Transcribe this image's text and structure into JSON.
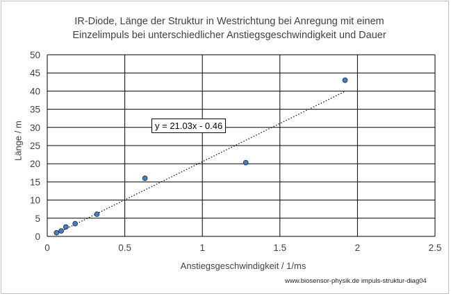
{
  "chart_data": {
    "type": "scatter",
    "title_lines": [
      "IR-Diode, Länge der Struktur in Westrichtung bei Anregung mit einem",
      "Einzelimpuls bei unterschiedlicher Anstiegsgeschwindigkeit und Dauer"
    ],
    "xlabel": "Anstiegsgeschwindigkeit /  1/ms",
    "ylabel": "Länge / m",
    "xlim": [
      0,
      2.5
    ],
    "ylim": [
      0,
      50
    ],
    "x_ticks": [
      "0",
      "0.5",
      "1",
      "1.5",
      "2",
      "2.5"
    ],
    "y_ticks": [
      "0",
      "5",
      "10",
      "15",
      "20",
      "25",
      "30",
      "35",
      "40",
      "45",
      "50"
    ],
    "grid": true,
    "marker_color": "#4a7ebb",
    "points": [
      {
        "x": 0.06,
        "y": 1.0
      },
      {
        "x": 0.09,
        "y": 1.5
      },
      {
        "x": 0.12,
        "y": 2.6
      },
      {
        "x": 0.18,
        "y": 3.5
      },
      {
        "x": 0.32,
        "y": 6.1
      },
      {
        "x": 0.63,
        "y": 16.0
      },
      {
        "x": 1.28,
        "y": 20.3
      },
      {
        "x": 1.92,
        "y": 43.0
      }
    ],
    "trendline": {
      "slope": 21.03,
      "intercept": -0.46,
      "x_range": [
        0.06,
        1.92
      ],
      "label": "y = 21.03x - 0.46"
    }
  },
  "credit": "www.biosensor-physik.de   impuls-struktur-diag04"
}
